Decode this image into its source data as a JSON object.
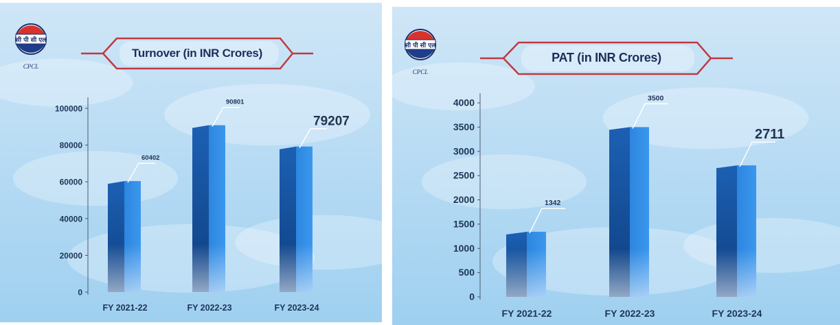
{
  "panels": [
    {
      "logo_text": "CPCL",
      "logo_script": "सी पी सी एल",
      "title": "Turnover (in INR Crores)",
      "chart_data": {
        "type": "bar",
        "title": "Turnover (in INR Crores)",
        "categories": [
          "FY 2021-22",
          "FY 2022-23",
          "FY 2023-24"
        ],
        "values": [
          60402,
          90801,
          79207
        ],
        "value_labels": [
          "60402",
          "90801",
          "79207"
        ],
        "ylim": [
          0,
          100000
        ],
        "yticks": [
          "0",
          "20000",
          "40000",
          "60000",
          "80000",
          "100000"
        ],
        "ytick_values": [
          0,
          20000,
          40000,
          60000,
          80000,
          100000
        ],
        "grid": false,
        "bar_color": "#1e74cc"
      }
    },
    {
      "logo_text": "CPCL",
      "logo_script": "सी पी सी एल",
      "title": "PAT (in INR Crores)",
      "chart_data": {
        "type": "bar",
        "title": "PAT (in INR Crores)",
        "categories": [
          "FY 2021-22",
          "FY 2022-23",
          "FY 2023-24"
        ],
        "values": [
          1342,
          3500,
          2711
        ],
        "value_labels": [
          "1342",
          "3500",
          "2711"
        ],
        "ylim": [
          0,
          4000
        ],
        "yticks": [
          "0",
          "500",
          "1000",
          "1500",
          "2000",
          "2500",
          "3000",
          "3500",
          "4000"
        ],
        "ytick_values": [
          0,
          500,
          1000,
          1500,
          2000,
          2500,
          3000,
          3500,
          4000
        ],
        "grid": false,
        "bar_color": "#1e74cc"
      }
    }
  ],
  "colors": {
    "sky_top": "#cfe6f7",
    "sky_bottom": "#9fd0f0",
    "banner_stroke": "#c0393e",
    "banner_fill": "#e8f3fb",
    "axis": "#4a5668",
    "tick_text": "#1e3457"
  }
}
